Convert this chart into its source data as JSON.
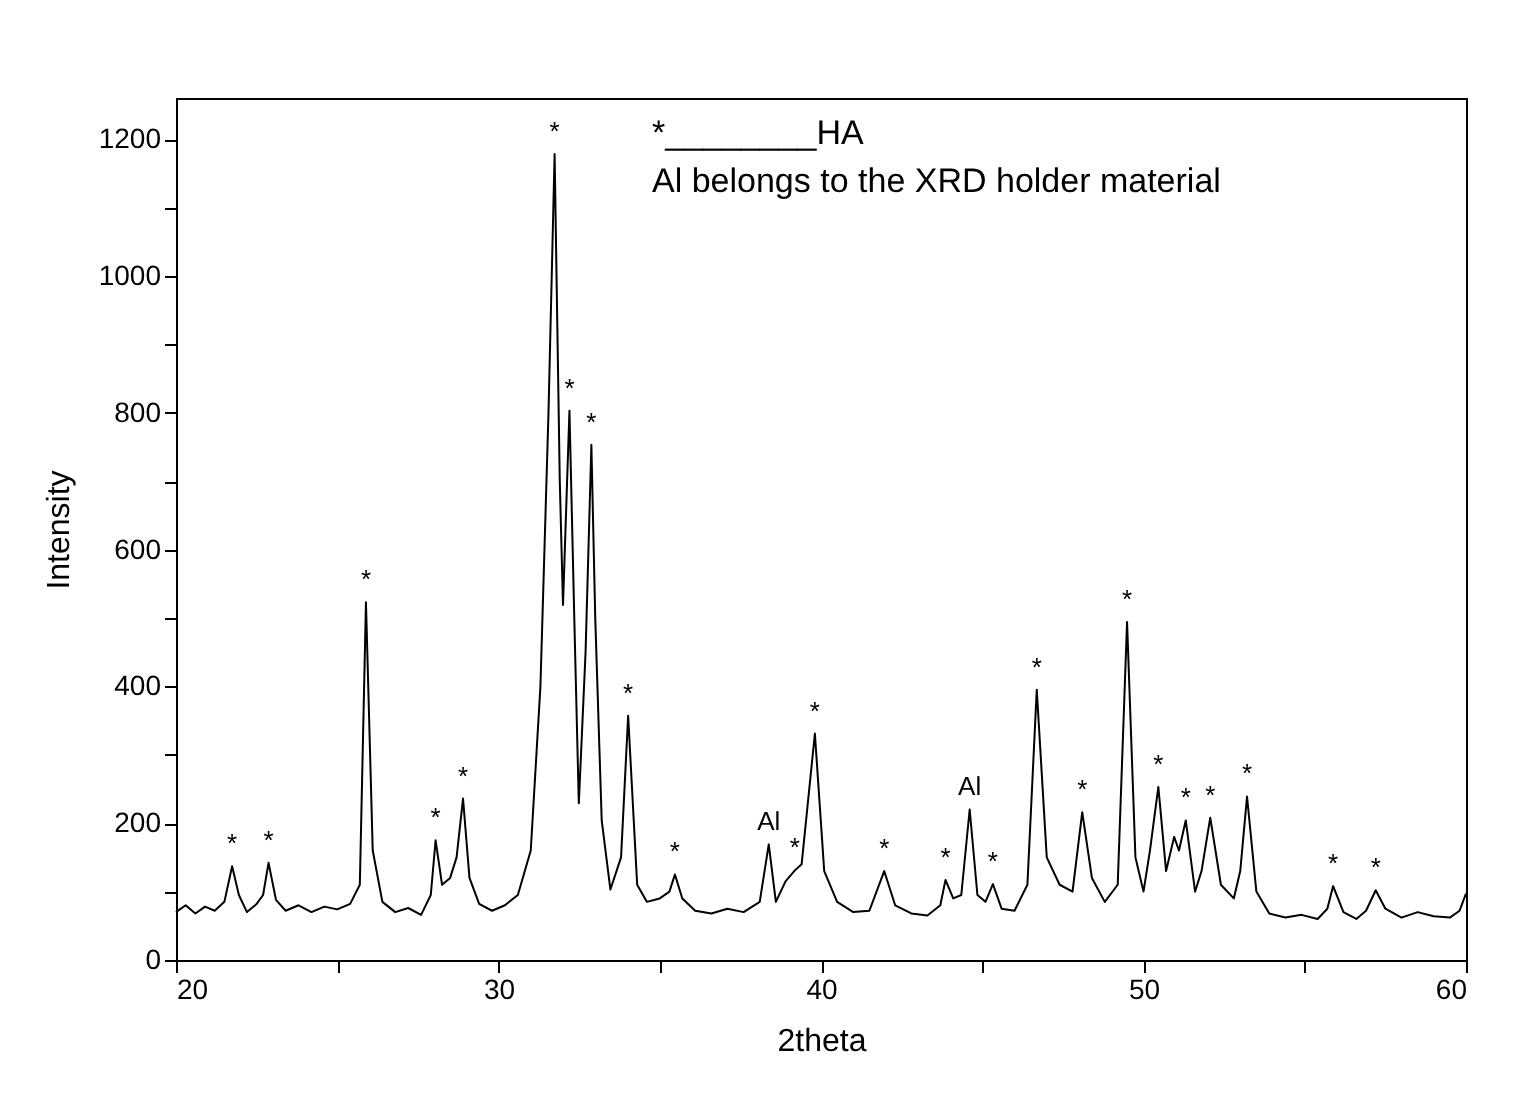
{
  "chart_data": {
    "type": "line",
    "xlabel": "2theta",
    "ylabel": "Intensity",
    "xlim": [
      20,
      60
    ],
    "ylim": [
      0,
      1260
    ],
    "xticks": [
      20,
      {
        "value": 25,
        "label": null
      },
      30,
      {
        "value": 35,
        "label": null
      },
      40,
      {
        "value": 45,
        "label": null
      },
      50,
      {
        "value": 55,
        "label": null
      },
      60
    ],
    "yticks": [
      0,
      {
        "value": 100,
        "label": null
      },
      200,
      {
        "value": 300,
        "label": null
      },
      400,
      {
        "value": 500,
        "label": null
      },
      600,
      {
        "value": 700,
        "label": null
      },
      800,
      {
        "value": 900,
        "label": null
      },
      1000,
      {
        "value": 1100,
        "label": null
      },
      1200
    ],
    "grid": false,
    "marker": "none",
    "line_style": "solid",
    "series": [
      {
        "color": "#000000",
        "x": [
          20.0,
          20.3,
          20.6,
          20.9,
          21.2,
          21.5,
          21.74,
          21.95,
          22.2,
          22.5,
          22.7,
          22.87,
          23.1,
          23.4,
          23.8,
          24.2,
          24.6,
          25.0,
          25.4,
          25.7,
          25.89,
          26.1,
          26.4,
          26.8,
          27.2,
          27.6,
          27.9,
          28.05,
          28.25,
          28.5,
          28.7,
          28.9,
          29.1,
          29.4,
          29.8,
          30.2,
          30.6,
          31.0,
          31.3,
          31.55,
          31.74,
          31.9,
          32.0,
          32.2,
          32.35,
          32.49,
          32.7,
          32.88,
          33.0,
          33.2,
          33.47,
          33.8,
          34.02,
          34.3,
          34.6,
          35.0,
          35.3,
          35.47,
          35.7,
          36.1,
          36.6,
          37.1,
          37.6,
          38.1,
          38.38,
          38.6,
          38.9,
          39.19,
          39.4,
          39.81,
          40.1,
          40.5,
          41.0,
          41.5,
          41.96,
          42.3,
          42.8,
          43.3,
          43.7,
          43.86,
          44.1,
          44.35,
          44.61,
          44.85,
          45.1,
          45.33,
          45.6,
          46.0,
          46.4,
          46.69,
          47.0,
          47.4,
          47.8,
          48.1,
          48.4,
          48.8,
          49.2,
          49.49,
          49.75,
          50.0,
          50.2,
          50.46,
          50.7,
          50.95,
          51.1,
          51.31,
          51.6,
          51.8,
          52.07,
          52.4,
          52.8,
          53.0,
          53.21,
          53.5,
          53.9,
          54.4,
          54.9,
          55.4,
          55.7,
          55.88,
          56.2,
          56.6,
          56.9,
          57.2,
          57.5,
          58.0,
          58.5,
          59.0,
          59.5,
          59.8,
          60.0
        ],
        "values": [
          70,
          80,
          68,
          78,
          72,
          85,
          137,
          95,
          70,
          82,
          95,
          142,
          88,
          72,
          80,
          70,
          78,
          74,
          82,
          110,
          523,
          160,
          85,
          70,
          76,
          66,
          95,
          175,
          110,
          120,
          150,
          236,
          120,
          82,
          72,
          80,
          95,
          160,
          400,
          800,
          1178,
          700,
          519,
          803,
          500,
          229,
          450,
          753,
          500,
          204,
          103,
          150,
          357,
          110,
          85,
          90,
          100,
          125,
          90,
          72,
          68,
          75,
          70,
          85,
          169,
          85,
          115,
          131,
          140,
          331,
          130,
          85,
          70,
          72,
          130,
          80,
          68,
          65,
          80,
          117,
          90,
          95,
          220,
          95,
          85,
          111,
          75,
          72,
          110,
          395,
          150,
          110,
          100,
          216,
          120,
          85,
          110,
          494,
          150,
          100,
          160,
          253,
          130,
          180,
          160,
          204,
          100,
          130,
          208,
          110,
          90,
          130,
          239,
          100,
          68,
          62,
          66,
          60,
          75,
          108,
          70,
          60,
          72,
          102,
          75,
          62,
          70,
          64,
          62,
          72,
          97
        ]
      }
    ],
    "annotations": [
      "*________HA",
      "Al belongs to the XRD holder material",
      {
        "text": "*",
        "x": 21.74,
        "y": 137
      },
      {
        "text": "*",
        "x": 22.87,
        "y": 142
      },
      {
        "text": "*",
        "x": 25.89,
        "y": 523
      },
      {
        "text": "*",
        "x": 28.05,
        "y": 175
      },
      {
        "text": "*",
        "x": 28.9,
        "y": 236
      },
      {
        "text": "*",
        "x": 31.74,
        "y": 1178
      },
      {
        "text": "*",
        "x": 32.2,
        "y": 803
      },
      {
        "text": "*",
        "x": 32.88,
        "y": 753
      },
      {
        "text": "*",
        "x": 34.02,
        "y": 357
      },
      {
        "text": "*",
        "x": 35.47,
        "y": 125
      },
      {
        "text": "Al",
        "x": 38.38,
        "y": 169
      },
      {
        "text": "*",
        "x": 39.19,
        "y": 131
      },
      {
        "text": "*",
        "x": 39.81,
        "y": 331
      },
      {
        "text": "*",
        "x": 41.96,
        "y": 130
      },
      {
        "text": "*",
        "x": 43.86,
        "y": 117
      },
      {
        "text": "Al",
        "x": 44.61,
        "y": 220
      },
      {
        "text": "*",
        "x": 45.33,
        "y": 111
      },
      {
        "text": "*",
        "x": 46.69,
        "y": 395
      },
      {
        "text": "*",
        "x": 48.1,
        "y": 216
      },
      {
        "text": "*",
        "x": 49.49,
        "y": 494
      },
      {
        "text": "*",
        "x": 50.46,
        "y": 253
      },
      {
        "text": "*",
        "x": 51.31,
        "y": 204
      },
      {
        "text": "*",
        "x": 52.07,
        "y": 208
      },
      {
        "text": "*",
        "x": 53.21,
        "y": 239
      },
      {
        "text": "*",
        "x": 55.88,
        "y": 108
      },
      {
        "text": "*",
        "x": 57.2,
        "y": 102
      }
    ]
  }
}
